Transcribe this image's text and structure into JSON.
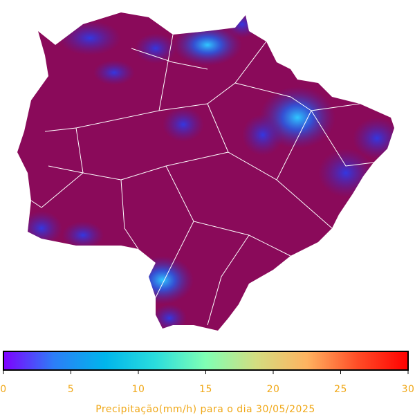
{
  "colorbar": {
    "label": "Precipitação(mm/h) para o dia 30/05/2025",
    "lim": [
      0,
      30
    ],
    "ticks": [
      0,
      5,
      10,
      15,
      20,
      25,
      30
    ],
    "colors": [
      "#7f00ff",
      "#2c7ef7",
      "#00b5eb",
      "#2adddd",
      "#80ffb4",
      "#d4dd80",
      "#ffb360",
      "#ff4d27",
      "#ff0000"
    ],
    "label_color": "#f0a818"
  }
}
